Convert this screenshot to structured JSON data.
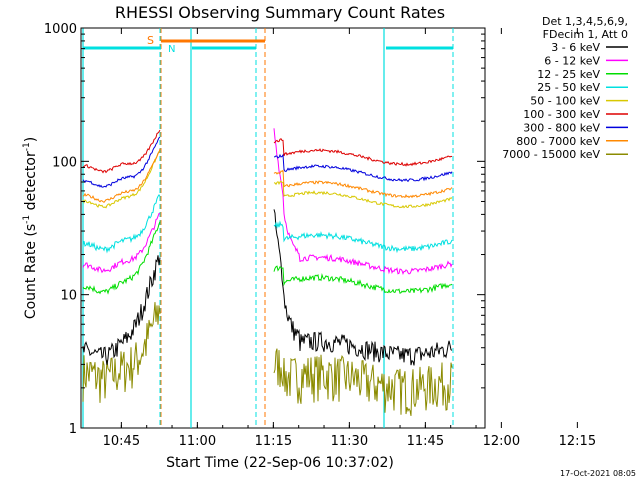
{
  "chart_data": {
    "type": "line",
    "title": "RHESSI Observing Summary Count Rates",
    "xlabel": "Start Time (22-Sep-06 10:37:02)",
    "ylabel_main": "Count Rate (s",
    "ylabel_sup1": "-1",
    "ylabel_mid": " detector",
    "ylabel_sup2": "-1",
    "ylabel_end": ")",
    "y_scale": "log",
    "ylim": [
      1,
      1000
    ],
    "xlim": [
      "10:37:02",
      "12:17:00"
    ],
    "x_ticks": [
      "10:45",
      "11:00",
      "11:15",
      "11:30",
      "11:45",
      "12:00",
      "12:15"
    ],
    "y_ticks": [
      "1",
      "10",
      "100",
      "1000"
    ],
    "legend_header": [
      "Det 1,3,4,5,6,9,",
      "FDecim 1, Att 0"
    ],
    "legend_position": "right",
    "timestamp": "17-Oct-2021 08:05",
    "flag_labels": {
      "saa": "S",
      "night": "N"
    },
    "series": [
      {
        "name": "3 - 6 keV",
        "color": "#000000"
      },
      {
        "name": "6 - 12 keV",
        "color": "#ff00ff"
      },
      {
        "name": "12 - 25 keV",
        "color": "#00dd00"
      },
      {
        "name": "25 - 50 keV",
        "color": "#00e0e0"
      },
      {
        "name": "50 - 100 keV",
        "color": "#d8c800"
      },
      {
        "name": "100 - 300 keV",
        "color": "#dd0000"
      },
      {
        "name": "300 - 800 keV",
        "color": "#0000dd"
      },
      {
        "name": "800 - 7000 keV",
        "color": "#ff8800"
      },
      {
        "name": "7000 - 15000 keV",
        "color": "#8b8b00"
      }
    ]
  }
}
